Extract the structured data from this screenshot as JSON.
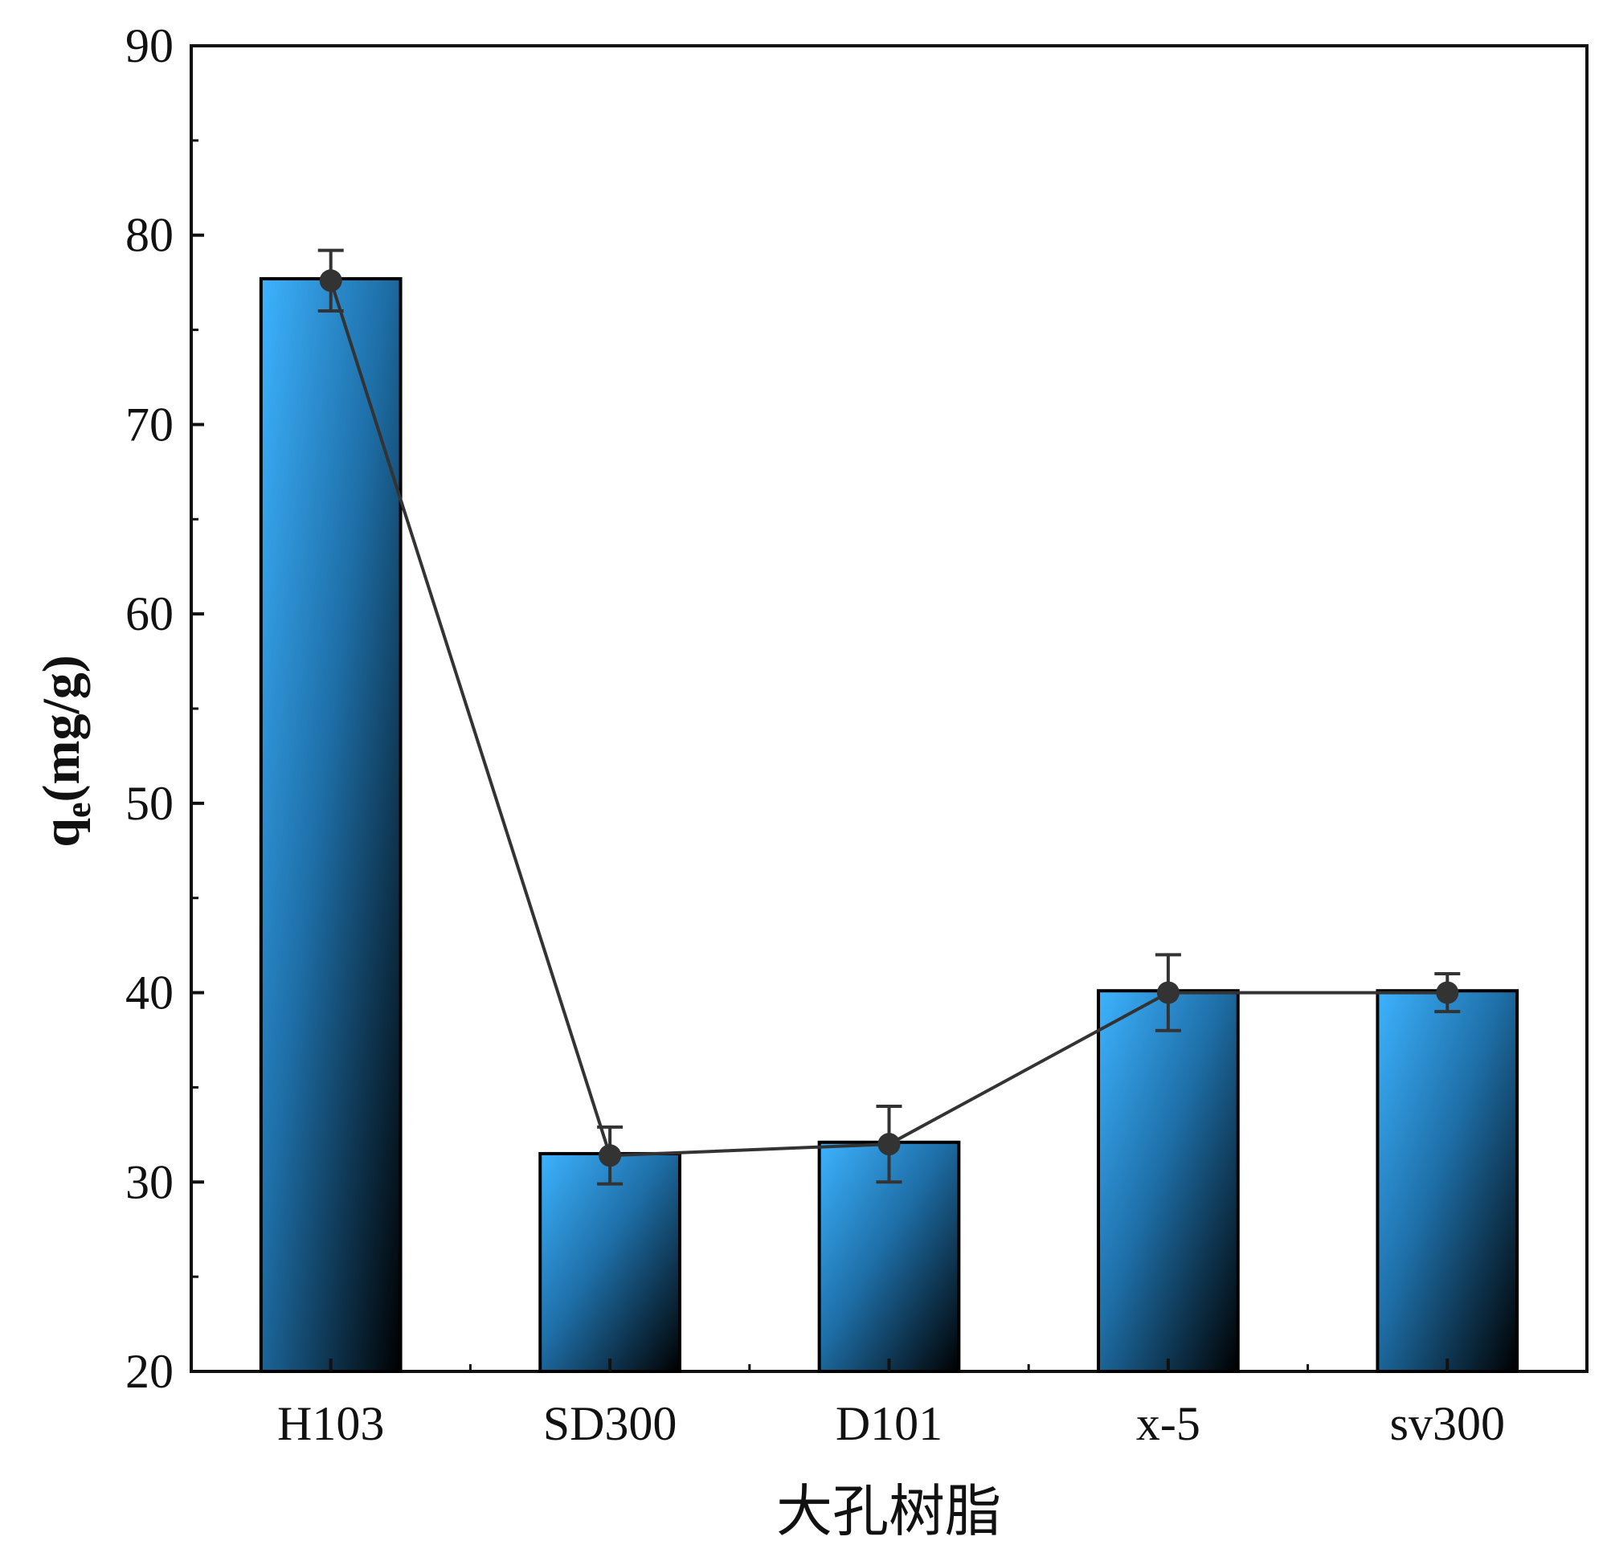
{
  "chart_data": {
    "type": "bar",
    "xlabel": "大孔树脂",
    "ylabel": {
      "main": "q",
      "sub": "e",
      "unit": "(mg/g)"
    },
    "categories": [
      "H103",
      "SD300",
      "D101",
      "x-5",
      "sv300"
    ],
    "values": [
      77.7,
      31.5,
      32.1,
      40.1,
      40.1
    ],
    "line_points": [
      77.6,
      31.4,
      32.0,
      40.0,
      40.0
    ],
    "error": [
      1.6,
      1.5,
      2.0,
      2.0,
      1.0
    ],
    "ylim": [
      20,
      90
    ],
    "yticks": [
      20,
      30,
      40,
      50,
      60,
      70,
      80,
      90
    ],
    "grid": false,
    "legend": "none",
    "colors": {
      "bar_light": "#3db3ff",
      "bar_mid": "#1e6fa8",
      "bar_dark": "#000000",
      "line": "#333333"
    }
  }
}
